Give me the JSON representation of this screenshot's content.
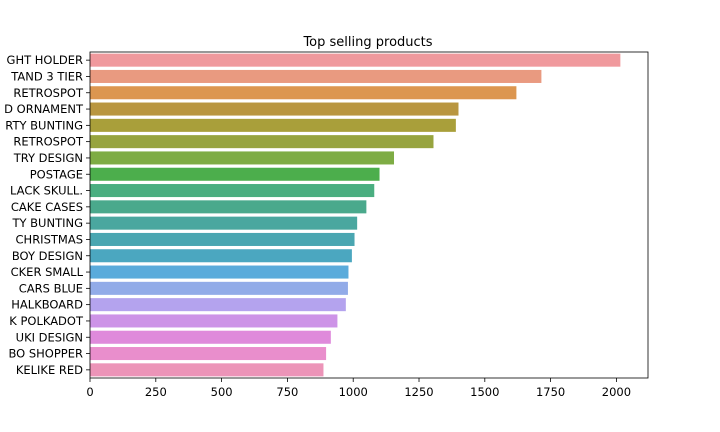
{
  "chart_data": {
    "type": "bar",
    "orientation": "horizontal",
    "title": "Top selling products",
    "xlabel": "",
    "ylabel": "",
    "xlim": [
      0,
      2120
    ],
    "x_ticks": [
      "0",
      "250",
      "500",
      "750",
      "1000",
      "1250",
      "1500",
      "1750",
      "2000"
    ],
    "x_tick_values": [
      0,
      250,
      500,
      750,
      1000,
      1250,
      1500,
      1750,
      2000
    ],
    "grid": false,
    "categories": [
      "GHT HOLDER",
      "TAND 3 TIER",
      "RETROSPOT",
      "D ORNAMENT",
      "RTY BUNTING",
      "RETROSPOT",
      "TRY DESIGN",
      "POSTAGE",
      "LACK SKULL.",
      "CAKE CASES",
      "TY BUNTING",
      "CHRISTMAS",
      "BOY DESIGN",
      "CKER SMALL",
      "CARS BLUE",
      "HALKBOARD",
      "K POLKADOT",
      "UKI DESIGN",
      "BO SHOPPER",
      "KELIKE RED"
    ],
    "values": [
      2015,
      1715,
      1620,
      1400,
      1390,
      1305,
      1155,
      1100,
      1080,
      1050,
      1015,
      1005,
      995,
      982,
      980,
      972,
      940,
      915,
      897,
      887
    ],
    "colors": [
      "#f0999d",
      "#e99a80",
      "#dc9650",
      "#b99640",
      "#a99f3a",
      "#97a43f",
      "#7eac44",
      "#4cae4c",
      "#4aae80",
      "#4aa98c",
      "#4aa79f",
      "#4aa6b1",
      "#4ba7c0",
      "#5aabdb",
      "#92abe8",
      "#b4a3ee",
      "#cd93e7",
      "#df8adb",
      "#e98ecc",
      "#ec94b8"
    ]
  }
}
